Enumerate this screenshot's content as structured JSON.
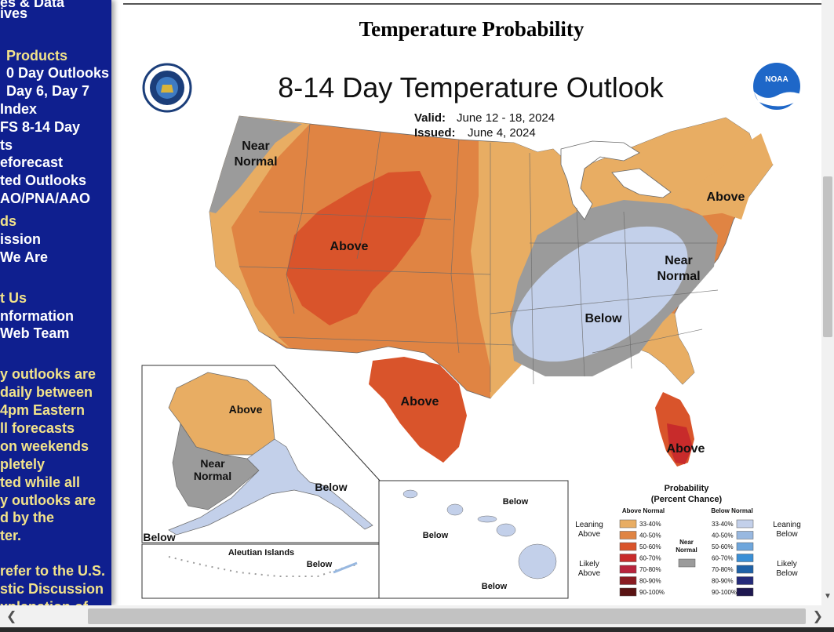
{
  "sidebar": {
    "lines": [
      {
        "text": "es & Data",
        "color": "white",
        "indent": 0
      },
      {
        "text": "ives",
        "color": "white",
        "indent": 0
      },
      {
        "text": "Products",
        "color": "yellow",
        "indent": 8
      },
      {
        "text": "0 Day Outlooks",
        "color": "white",
        "indent": 8
      },
      {
        "text": "Day 6, Day 7",
        "color": "white",
        "indent": 8
      },
      {
        "text": "Index",
        "color": "white",
        "indent": 0
      },
      {
        "text": "FS 8-14 Day",
        "color": "white",
        "indent": 0
      },
      {
        "text": "ts",
        "color": "white",
        "indent": 0
      },
      {
        "text": "eforecast",
        "color": "white",
        "indent": 0
      },
      {
        "text": "ted Outlooks",
        "color": "white",
        "indent": 0
      },
      {
        "text": "AO/PNA/AAO",
        "color": "white",
        "indent": 0
      },
      {
        "text": "ds",
        "color": "yellow",
        "indent": 0
      },
      {
        "text": "ission",
        "color": "white",
        "indent": 0
      },
      {
        "text": "We Are",
        "color": "white",
        "indent": 0
      },
      {
        "text": "t Us",
        "color": "yellow",
        "indent": 0
      },
      {
        "text": "nformation",
        "color": "white",
        "indent": 0
      },
      {
        "text": "Web Team",
        "color": "white",
        "indent": 0
      },
      {
        "text": "y outlooks are",
        "color": "yellow",
        "indent": 0
      },
      {
        "text": "daily between",
        "color": "yellow",
        "indent": 0
      },
      {
        "text": "4pm Eastern",
        "color": "yellow",
        "indent": 0
      },
      {
        "text": "ll forecasts",
        "color": "yellow",
        "indent": 0
      },
      {
        "text": "on weekends",
        "color": "yellow",
        "indent": 0
      },
      {
        "text": "pletely",
        "color": "yellow",
        "indent": 0
      },
      {
        "text": "ted while all",
        "color": "yellow",
        "indent": 0
      },
      {
        "text": "y outlooks are",
        "color": "yellow",
        "indent": 0
      },
      {
        "text": "d by the",
        "color": "yellow",
        "indent": 0
      },
      {
        "text": "ter.",
        "color": "yellow",
        "indent": 0
      },
      {
        "text": "refer to the U.S.",
        "color": "yellow",
        "indent": 0
      },
      {
        "text": "stic Discussion",
        "color": "yellow",
        "indent": 0
      },
      {
        "text": "xplanation of",
        "color": "yellow",
        "indent": 0
      }
    ]
  },
  "page": {
    "title": "Temperature Probability"
  },
  "map": {
    "title": "8-14 Day Temperature Outlook",
    "valid_label": "Valid:",
    "valid_value": "June 12 - 18, 2024",
    "issued_label": "Issued:",
    "issued_value": "June 4, 2024",
    "logo_noaa": "NOAA",
    "labels": {
      "near_normal_nw_1": "Near",
      "near_normal_nw_2": "Normal",
      "above_west": "Above",
      "above_northeast": "Above",
      "near_normal_ne_1": "Near",
      "near_normal_ne_2": "Normal",
      "below_ohio": "Below",
      "above_texas": "Above",
      "above_florida": "Above",
      "alaska_above": "Above",
      "alaska_near_1": "Near",
      "alaska_near_2": "Normal",
      "alaska_below_se": "Below",
      "alaska_below_sw": "Below",
      "aleutian_title": "Aleutian Islands",
      "aleutian_below": "Below",
      "hawaii_below_1": "Below",
      "hawaii_below_2": "Below",
      "hawaii_below_3": "Below"
    },
    "legend": {
      "title_1": "Probability",
      "title_2": "(Percent Chance)",
      "above_header": "Above Normal",
      "below_header": "Below Normal",
      "leaning_above_1": "Leaning",
      "leaning_above_2": "Above",
      "likely_above_1": "Likely",
      "likely_above_2": "Above",
      "leaning_below_1": "Leaning",
      "leaning_below_2": "Below",
      "likely_below_1": "Likely",
      "likely_below_2": "Below",
      "near_1": "Near",
      "near_2": "Normal",
      "above_bins": [
        {
          "label": "33-40%",
          "color": "#e8ad63"
        },
        {
          "label": "40-50%",
          "color": "#e08443"
        },
        {
          "label": "50-60%",
          "color": "#d9542b"
        },
        {
          "label": "60-70%",
          "color": "#c82b2b"
        },
        {
          "label": "70-80%",
          "color": "#b8243c"
        },
        {
          "label": "80-90%",
          "color": "#8a1c22"
        },
        {
          "label": "90-100%",
          "color": "#5a1313"
        }
      ],
      "below_bins": [
        {
          "label": "33-40%",
          "color": "#c3d0ea"
        },
        {
          "label": "40-50%",
          "color": "#98b8e0"
        },
        {
          "label": "50-60%",
          "color": "#6ea6dc"
        },
        {
          "label": "60-70%",
          "color": "#3a8fd6"
        },
        {
          "label": "70-80%",
          "color": "#1f62a8"
        },
        {
          "label": "80-90%",
          "color": "#252b7a"
        },
        {
          "label": "90-100%",
          "color": "#1e1850"
        }
      ],
      "near_color": "#9b9b9b"
    }
  },
  "colors": {
    "sidebar_bg": "#0f1f8f",
    "sidebar_white": "#ffffff",
    "sidebar_yellow": "#f2e38a",
    "above_light": "#e8ad63",
    "above_mid": "#e08443",
    "above_strong": "#d9542b",
    "above_60": "#c82b2b",
    "near_normal": "#9b9b9b",
    "below_light": "#c3d0ea",
    "water": "#ffffff"
  }
}
